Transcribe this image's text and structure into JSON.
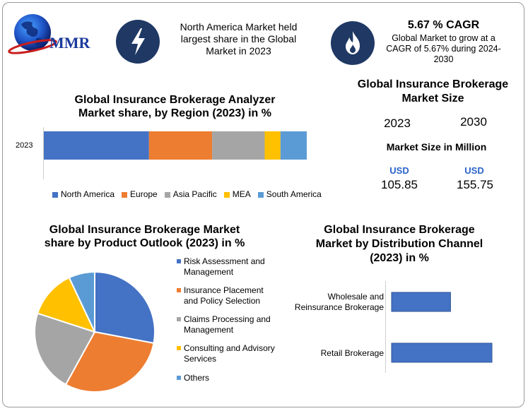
{
  "header": {
    "logo_text": "MMR",
    "highlight_text": "North America Market held largest share in the Global Market in 2023",
    "cagr_title": "5.67 % CAGR",
    "cagr_text": "Global Market to grow at a CAGR of 5.67% during 2024-2030",
    "bolt_icon": "lightning-bolt-icon",
    "flame_icon": "flame-icon"
  },
  "market_size": {
    "title": "Global Insurance Brokerage Market Size",
    "year_a": "2023",
    "year_b": "2030",
    "unit_label": "Market Size in Million",
    "currency_a": "USD",
    "currency_b": "USD",
    "value_a": "105.85",
    "value_b": "155.75"
  },
  "colors": {
    "north_america": "#4472C4",
    "europe": "#ED7D31",
    "asia_pacific": "#A5A5A5",
    "mea": "#FFC000",
    "south_america": "#5B9BD5",
    "icon_bg": "#1f3864"
  },
  "chart_data": [
    {
      "type": "bar",
      "orientation": "horizontal-stacked",
      "title": "Global Insurance Brokerage Analyzer Market share, by Region (2023) in %",
      "categories": [
        "2023"
      ],
      "series": [
        {
          "name": "North America",
          "values": [
            40
          ],
          "color": "#4472C4"
        },
        {
          "name": "Europe",
          "values": [
            24
          ],
          "color": "#ED7D31"
        },
        {
          "name": "Asia Pacific",
          "values": [
            20
          ],
          "color": "#A5A5A5"
        },
        {
          "name": "MEA",
          "values": [
            6
          ],
          "color": "#FFC000"
        },
        {
          "name": "South America",
          "values": [
            10
          ],
          "color": "#5B9BD5"
        }
      ],
      "legend": "bottom",
      "grid": false
    },
    {
      "type": "pie",
      "title": "Global Insurance Brokerage Market share by Product Outlook (2023) in %",
      "labels": [
        "Risk Assessment and Management",
        "Insurance Placement and Policy Selection",
        "Claims Processing and Management",
        "Consulting and Advisory Services",
        "Others"
      ],
      "values": [
        28,
        30,
        22,
        13,
        7
      ],
      "colors": [
        "#4472C4",
        "#ED7D31",
        "#A5A5A5",
        "#FFC000",
        "#5B9BD5"
      ],
      "legend": "right"
    },
    {
      "type": "bar",
      "orientation": "horizontal",
      "title": "Global Insurance Brokerage Market by Distribution Channel (2023) in %",
      "categories": [
        "Wholesale and Reinsurance Brokerage",
        "Retail Brokerage"
      ],
      "values": [
        37,
        63
      ],
      "color": "#4472C4",
      "grid": false
    }
  ]
}
